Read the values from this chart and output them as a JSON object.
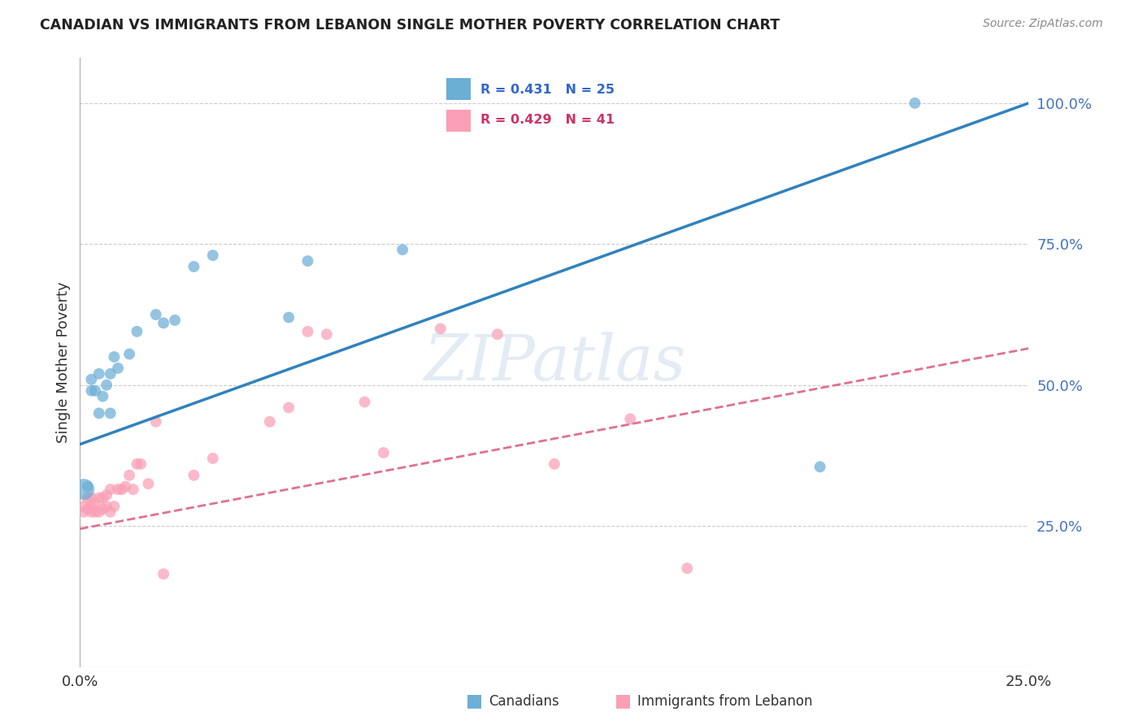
{
  "title": "CANADIAN VS IMMIGRANTS FROM LEBANON SINGLE MOTHER POVERTY CORRELATION CHART",
  "source": "Source: ZipAtlas.com",
  "ylabel": "Single Mother Poverty",
  "ytick_labels": [
    "100.0%",
    "75.0%",
    "50.0%",
    "25.0%"
  ],
  "ytick_values": [
    1.0,
    0.75,
    0.5,
    0.25
  ],
  "xtick_labels": [
    "0.0%",
    "25.0%"
  ],
  "xtick_values": [
    0.0,
    0.25
  ],
  "xlim": [
    0.0,
    0.25
  ],
  "ylim": [
    0.0,
    1.08
  ],
  "legend_blue_R": "R = 0.431",
  "legend_blue_N": "N = 25",
  "legend_pink_R": "R = 0.429",
  "legend_pink_N": "N = 41",
  "watermark": "ZIPatlas",
  "blue_color": "#6baed6",
  "pink_color": "#fa9fb5",
  "blue_line_color": "#3182bd",
  "pink_line_color": "#e07090",
  "blue_line_x": [
    0.0,
    0.25
  ],
  "blue_line_y": [
    0.395,
    1.0
  ],
  "pink_line_x": [
    0.0,
    0.25
  ],
  "pink_line_y": [
    0.245,
    0.565
  ],
  "canadians_x": [
    0.001,
    0.002,
    0.003,
    0.003,
    0.004,
    0.005,
    0.005,
    0.006,
    0.007,
    0.008,
    0.008,
    0.009,
    0.01,
    0.013,
    0.015,
    0.02,
    0.022,
    0.025,
    0.03,
    0.035,
    0.055,
    0.06,
    0.085,
    0.195,
    0.22
  ],
  "canadians_y": [
    0.315,
    0.32,
    0.49,
    0.51,
    0.49,
    0.45,
    0.52,
    0.48,
    0.5,
    0.45,
    0.52,
    0.55,
    0.53,
    0.555,
    0.595,
    0.625,
    0.61,
    0.615,
    0.71,
    0.73,
    0.62,
    0.72,
    0.74,
    0.355,
    1.0
  ],
  "canadians_size": [
    350,
    100,
    100,
    100,
    100,
    100,
    100,
    100,
    100,
    100,
    100,
    100,
    100,
    100,
    100,
    100,
    100,
    100,
    100,
    100,
    100,
    100,
    100,
    100,
    100
  ],
  "lebanon_x": [
    0.001,
    0.001,
    0.002,
    0.002,
    0.003,
    0.003,
    0.003,
    0.004,
    0.004,
    0.005,
    0.005,
    0.006,
    0.006,
    0.007,
    0.007,
    0.008,
    0.008,
    0.009,
    0.01,
    0.011,
    0.012,
    0.013,
    0.014,
    0.015,
    0.016,
    0.018,
    0.02,
    0.022,
    0.03,
    0.035,
    0.05,
    0.055,
    0.06,
    0.065,
    0.075,
    0.08,
    0.095,
    0.11,
    0.125,
    0.145,
    0.16
  ],
  "lebanon_y": [
    0.275,
    0.285,
    0.28,
    0.3,
    0.275,
    0.285,
    0.3,
    0.275,
    0.29,
    0.275,
    0.3,
    0.28,
    0.3,
    0.285,
    0.305,
    0.275,
    0.315,
    0.285,
    0.315,
    0.315,
    0.32,
    0.34,
    0.315,
    0.36,
    0.36,
    0.325,
    0.435,
    0.165,
    0.34,
    0.37,
    0.435,
    0.46,
    0.595,
    0.59,
    0.47,
    0.38,
    0.6,
    0.59,
    0.36,
    0.44,
    0.175
  ],
  "lebanon_size": [
    100,
    100,
    100,
    100,
    100,
    100,
    100,
    100,
    100,
    100,
    100,
    100,
    100,
    100,
    100,
    100,
    100,
    100,
    100,
    100,
    100,
    100,
    100,
    100,
    100,
    100,
    100,
    100,
    100,
    100,
    100,
    100,
    100,
    100,
    100,
    100,
    100,
    100,
    100,
    100,
    100
  ]
}
